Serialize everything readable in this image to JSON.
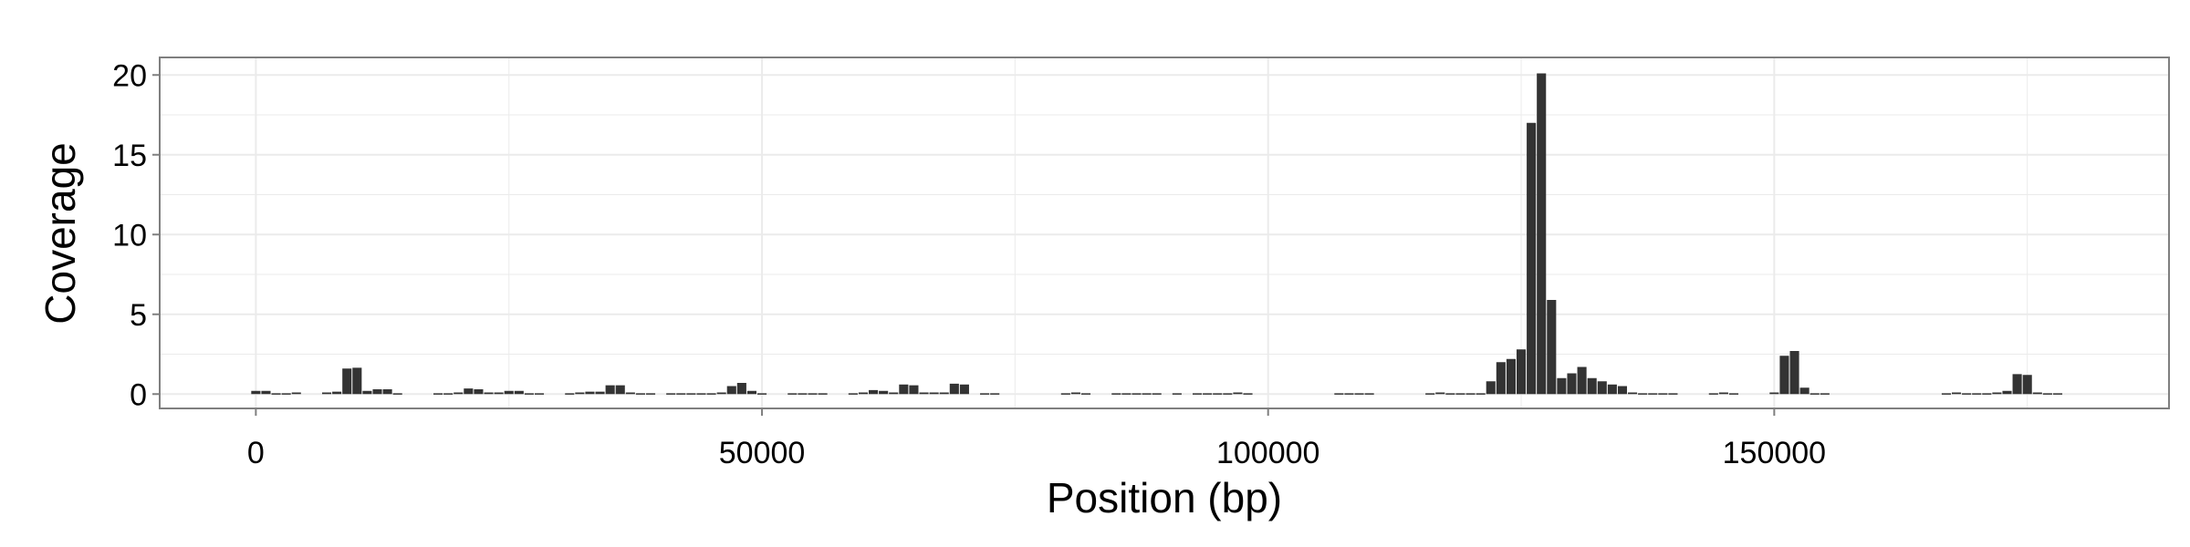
{
  "chart_data": {
    "type": "bar",
    "title": "",
    "xlabel": "Position (bp)",
    "ylabel": "Coverage",
    "xlim": [
      -9500,
      189000
    ],
    "ylim": [
      -0.9,
      21.1
    ],
    "x_ticks": [
      0,
      50000,
      100000,
      150000
    ],
    "x_tick_labels": [
      "0",
      "50000",
      "100000",
      "150000"
    ],
    "y_ticks": [
      0,
      5,
      10,
      15,
      20
    ],
    "y_tick_labels": [
      "0",
      "5",
      "10",
      "15",
      "20"
    ],
    "grid": true,
    "legend": "none",
    "bin_width_bp": 1000,
    "bar_color": "#333333",
    "panel_background": "#ffffff",
    "grid_color": "#ebebeb",
    "points": [
      {
        "x": 0,
        "y": 0.2
      },
      {
        "x": 1000,
        "y": 0.2
      },
      {
        "x": 2000,
        "y": 0.05
      },
      {
        "x": 3000,
        "y": 0.05
      },
      {
        "x": 4000,
        "y": 0.1
      },
      {
        "x": 7000,
        "y": 0.1
      },
      {
        "x": 8000,
        "y": 0.15
      },
      {
        "x": 9000,
        "y": 1.6
      },
      {
        "x": 10000,
        "y": 1.65
      },
      {
        "x": 11000,
        "y": 0.2
      },
      {
        "x": 12000,
        "y": 0.3
      },
      {
        "x": 13000,
        "y": 0.3
      },
      {
        "x": 14000,
        "y": 0.05
      },
      {
        "x": 18000,
        "y": 0.05
      },
      {
        "x": 19000,
        "y": 0.05
      },
      {
        "x": 20000,
        "y": 0.1
      },
      {
        "x": 21000,
        "y": 0.35
      },
      {
        "x": 22000,
        "y": 0.3
      },
      {
        "x": 23000,
        "y": 0.1
      },
      {
        "x": 24000,
        "y": 0.1
      },
      {
        "x": 25000,
        "y": 0.2
      },
      {
        "x": 26000,
        "y": 0.2
      },
      {
        "x": 27000,
        "y": 0.05
      },
      {
        "x": 28000,
        "y": 0.05
      },
      {
        "x": 31000,
        "y": 0.05
      },
      {
        "x": 32000,
        "y": 0.1
      },
      {
        "x": 33000,
        "y": 0.15
      },
      {
        "x": 34000,
        "y": 0.15
      },
      {
        "x": 35000,
        "y": 0.55
      },
      {
        "x": 36000,
        "y": 0.55
      },
      {
        "x": 37000,
        "y": 0.1
      },
      {
        "x": 38000,
        "y": 0.05
      },
      {
        "x": 39000,
        "y": 0.05
      },
      {
        "x": 41000,
        "y": 0.05
      },
      {
        "x": 42000,
        "y": 0.05
      },
      {
        "x": 43000,
        "y": 0.05
      },
      {
        "x": 44000,
        "y": 0.05
      },
      {
        "x": 45000,
        "y": 0.05
      },
      {
        "x": 46000,
        "y": 0.1
      },
      {
        "x": 47000,
        "y": 0.5
      },
      {
        "x": 48000,
        "y": 0.7
      },
      {
        "x": 49000,
        "y": 0.2
      },
      {
        "x": 50000,
        "y": 0.05
      },
      {
        "x": 53000,
        "y": 0.05
      },
      {
        "x": 54000,
        "y": 0.05
      },
      {
        "x": 55000,
        "y": 0.05
      },
      {
        "x": 56000,
        "y": 0.05
      },
      {
        "x": 59000,
        "y": 0.05
      },
      {
        "x": 60000,
        "y": 0.1
      },
      {
        "x": 61000,
        "y": 0.25
      },
      {
        "x": 62000,
        "y": 0.2
      },
      {
        "x": 63000,
        "y": 0.1
      },
      {
        "x": 64000,
        "y": 0.6
      },
      {
        "x": 65000,
        "y": 0.55
      },
      {
        "x": 66000,
        "y": 0.1
      },
      {
        "x": 67000,
        "y": 0.1
      },
      {
        "x": 68000,
        "y": 0.1
      },
      {
        "x": 69000,
        "y": 0.65
      },
      {
        "x": 70000,
        "y": 0.6
      },
      {
        "x": 72000,
        "y": 0.05
      },
      {
        "x": 73000,
        "y": 0.05
      },
      {
        "x": 80000,
        "y": 0.05
      },
      {
        "x": 81000,
        "y": 0.1
      },
      {
        "x": 82000,
        "y": 0.05
      },
      {
        "x": 85000,
        "y": 0.05
      },
      {
        "x": 86000,
        "y": 0.05
      },
      {
        "x": 87000,
        "y": 0.05
      },
      {
        "x": 88000,
        "y": 0.05
      },
      {
        "x": 89000,
        "y": 0.05
      },
      {
        "x": 91000,
        "y": 0.05
      },
      {
        "x": 93000,
        "y": 0.05
      },
      {
        "x": 94000,
        "y": 0.05
      },
      {
        "x": 95000,
        "y": 0.05
      },
      {
        "x": 96000,
        "y": 0.05
      },
      {
        "x": 97000,
        "y": 0.1
      },
      {
        "x": 98000,
        "y": 0.05
      },
      {
        "x": 107000,
        "y": 0.05
      },
      {
        "x": 108000,
        "y": 0.05
      },
      {
        "x": 109000,
        "y": 0.05
      },
      {
        "x": 110000,
        "y": 0.05
      },
      {
        "x": 116000,
        "y": 0.05
      },
      {
        "x": 117000,
        "y": 0.1
      },
      {
        "x": 118000,
        "y": 0.05
      },
      {
        "x": 119000,
        "y": 0.05
      },
      {
        "x": 120000,
        "y": 0.05
      },
      {
        "x": 121000,
        "y": 0.05
      },
      {
        "x": 122000,
        "y": 0.8
      },
      {
        "x": 123000,
        "y": 2.0
      },
      {
        "x": 124000,
        "y": 2.2
      },
      {
        "x": 125000,
        "y": 2.8
      },
      {
        "x": 126000,
        "y": 17.0
      },
      {
        "x": 127000,
        "y": 20.1
      },
      {
        "x": 128000,
        "y": 5.9
      },
      {
        "x": 129000,
        "y": 1.0
      },
      {
        "x": 130000,
        "y": 1.3
      },
      {
        "x": 131000,
        "y": 1.7
      },
      {
        "x": 132000,
        "y": 1.0
      },
      {
        "x": 133000,
        "y": 0.8
      },
      {
        "x": 134000,
        "y": 0.6
      },
      {
        "x": 135000,
        "y": 0.5
      },
      {
        "x": 136000,
        "y": 0.1
      },
      {
        "x": 137000,
        "y": 0.05
      },
      {
        "x": 138000,
        "y": 0.05
      },
      {
        "x": 139000,
        "y": 0.05
      },
      {
        "x": 140000,
        "y": 0.05
      },
      {
        "x": 144000,
        "y": 0.05
      },
      {
        "x": 145000,
        "y": 0.1
      },
      {
        "x": 146000,
        "y": 0.05
      },
      {
        "x": 150000,
        "y": 0.1
      },
      {
        "x": 151000,
        "y": 2.4
      },
      {
        "x": 152000,
        "y": 2.7
      },
      {
        "x": 153000,
        "y": 0.4
      },
      {
        "x": 154000,
        "y": 0.05
      },
      {
        "x": 155000,
        "y": 0.05
      },
      {
        "x": 167000,
        "y": 0.05
      },
      {
        "x": 168000,
        "y": 0.1
      },
      {
        "x": 169000,
        "y": 0.05
      },
      {
        "x": 170000,
        "y": 0.05
      },
      {
        "x": 171000,
        "y": 0.05
      },
      {
        "x": 172000,
        "y": 0.1
      },
      {
        "x": 173000,
        "y": 0.2
      },
      {
        "x": 174000,
        "y": 1.25
      },
      {
        "x": 175000,
        "y": 1.2
      },
      {
        "x": 176000,
        "y": 0.1
      },
      {
        "x": 177000,
        "y": 0.05
      },
      {
        "x": 178000,
        "y": 0.05
      }
    ]
  }
}
